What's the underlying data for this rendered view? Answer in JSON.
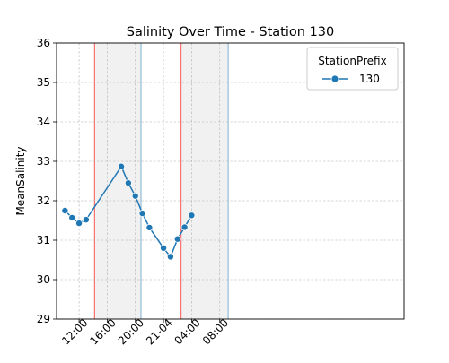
{
  "chart_data": {
    "type": "line",
    "title": "Salinity Over Time - Station 130",
    "xlabel": "",
    "ylabel": "MeanSalinity",
    "x_range": [
      "2021-04-20T08:48",
      "2021-04-22T10:12"
    ],
    "ylim": [
      29,
      36
    ],
    "y_ticks": [
      29,
      30,
      31,
      32,
      33,
      34,
      35,
      36
    ],
    "x_ticks": [
      {
        "t": "2021-04-20T12:00",
        "label": "12:00"
      },
      {
        "t": "2021-04-20T16:00",
        "label": "16:00"
      },
      {
        "t": "2021-04-20T20:00",
        "label": "20:00"
      },
      {
        "t": "2021-04-21T00:00",
        "label": "21-04"
      },
      {
        "t": "2021-04-21T04:00",
        "label": "04:00"
      },
      {
        "t": "2021-04-21T08:00",
        "label": "08:00"
      }
    ],
    "grid": true,
    "legend": {
      "title": "StationPrefix",
      "placement": "upper right"
    },
    "series": [
      {
        "name": "130",
        "color": "#1f77b4",
        "marker": "circle",
        "points": [
          {
            "t": "2021-04-20T10:00",
            "y": 31.75
          },
          {
            "t": "2021-04-20T11:00",
            "y": 31.57
          },
          {
            "t": "2021-04-20T12:00",
            "y": 31.43
          },
          {
            "t": "2021-04-20T13:00",
            "y": 31.52
          },
          {
            "t": "2021-04-20T18:00",
            "y": 32.87
          },
          {
            "t": "2021-04-20T19:00",
            "y": 32.45
          },
          {
            "t": "2021-04-20T20:00",
            "y": 32.12
          },
          {
            "t": "2021-04-20T21:00",
            "y": 31.68
          },
          {
            "t": "2021-04-20T22:00",
            "y": 31.32
          },
          {
            "t": "2021-04-21T00:00",
            "y": 30.8
          },
          {
            "t": "2021-04-21T01:00",
            "y": 30.58
          },
          {
            "t": "2021-04-21T02:00",
            "y": 31.03
          },
          {
            "t": "2021-04-21T03:00",
            "y": 31.33
          },
          {
            "t": "2021-04-21T04:00",
            "y": 31.63
          }
        ]
      }
    ],
    "shaded_regions": [
      {
        "start": "2021-04-20T14:12",
        "end": "2021-04-20T20:48",
        "fill": "#e6e6e6",
        "start_line_color": "#ff0000",
        "end_line_color": "#1f77b4"
      },
      {
        "start": "2021-04-21T02:30",
        "end": "2021-04-21T09:12",
        "fill": "#e6e6e6",
        "start_line_color": "#ff0000",
        "end_line_color": "#1f77b4"
      }
    ]
  }
}
